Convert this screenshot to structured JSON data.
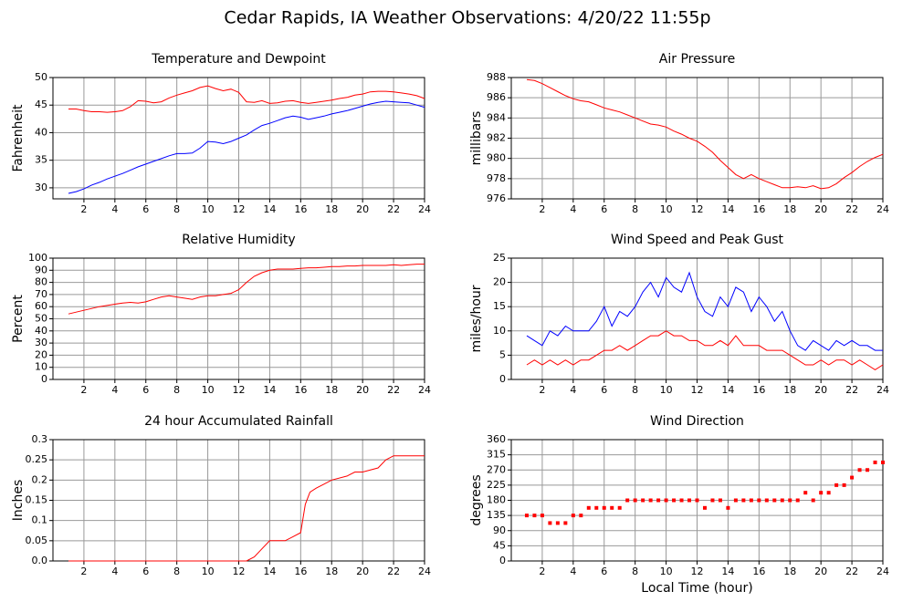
{
  "title": "Cedar Rapids, IA Weather Observations: 4/20/22 11:55p",
  "chart_data": [
    {
      "type": "line",
      "title": "Temperature and Dewpoint",
      "ylabel": "Fahrenheit",
      "x": [
        1,
        1.5,
        2,
        2.5,
        3,
        3.5,
        4,
        4.5,
        5,
        5.5,
        6,
        6.5,
        7,
        7.5,
        8,
        8.5,
        9,
        9.5,
        10,
        10.5,
        11,
        11.5,
        12,
        12.5,
        13,
        13.5,
        14,
        14.5,
        15,
        15.5,
        16,
        16.5,
        17,
        17.5,
        18,
        18.5,
        19,
        19.5,
        20,
        20.5,
        21,
        21.5,
        22,
        22.5,
        23,
        23.5,
        24
      ],
      "series": [
        {
          "color": "#ff0000",
          "values": [
            44.3,
            44.3,
            44,
            43.8,
            43.8,
            43.7,
            43.8,
            44,
            44.7,
            45.8,
            45.7,
            45.4,
            45.6,
            46.3,
            46.8,
            47.2,
            47.6,
            48.2,
            48.5,
            48,
            47.6,
            47.9,
            47.3,
            45.6,
            45.5,
            45.8,
            45.3,
            45.4,
            45.7,
            45.8,
            45.5,
            45.3,
            45.5,
            45.7,
            45.9,
            46.2,
            46.4,
            46.8,
            47,
            47.4,
            47.5,
            47.5,
            47.4,
            47.2,
            47,
            46.7,
            46.2
          ]
        },
        {
          "color": "#0000ff",
          "values": [
            29,
            29.3,
            29.8,
            30.5,
            31,
            31.6,
            32.1,
            32.6,
            33.2,
            33.8,
            34.3,
            34.8,
            35.3,
            35.8,
            36.2,
            36.2,
            36.3,
            37.2,
            38.4,
            38.3,
            38,
            38.4,
            39,
            39.6,
            40.5,
            41.3,
            41.7,
            42.2,
            42.7,
            43,
            42.8,
            42.4,
            42.7,
            43,
            43.4,
            43.7,
            44,
            44.4,
            44.8,
            45.2,
            45.5,
            45.7,
            45.6,
            45.5,
            45.4,
            45,
            44.6
          ]
        }
      ],
      "xlim": [
        0,
        24
      ],
      "xticks": [
        2,
        4,
        6,
        8,
        10,
        12,
        14,
        16,
        18,
        20,
        22,
        24
      ],
      "ylim": [
        28,
        50
      ],
      "yticks": [
        30,
        35,
        40,
        45,
        50
      ],
      "grid": true
    },
    {
      "type": "line",
      "title": "Air Pressure",
      "ylabel": "millibars",
      "x": [
        1,
        1.5,
        2,
        2.5,
        3,
        3.5,
        4,
        4.5,
        5,
        5.5,
        6,
        6.5,
        7,
        7.5,
        8,
        8.5,
        9,
        9.5,
        10,
        10.5,
        11,
        11.5,
        12,
        12.5,
        13,
        13.5,
        14,
        14.5,
        15,
        15.5,
        16,
        16.5,
        17,
        17.5,
        18,
        18.5,
        19,
        19.5,
        20,
        20.5,
        21,
        21.5,
        22,
        22.5,
        23,
        23.5,
        24
      ],
      "series": [
        {
          "color": "#ff0000",
          "values": [
            987.8,
            987.7,
            987.4,
            987,
            986.6,
            986.2,
            985.9,
            985.7,
            985.6,
            985.3,
            985,
            984.8,
            984.6,
            984.3,
            984,
            983.7,
            983.4,
            983.3,
            983.1,
            982.7,
            982.4,
            982,
            981.7,
            981.2,
            980.6,
            979.8,
            979.1,
            978.4,
            978,
            978.4,
            978,
            977.7,
            977.4,
            977.1,
            977.1,
            977.2,
            977.1,
            977.3,
            977,
            977.1,
            977.5,
            978.1,
            978.6,
            979.2,
            979.7,
            980.1,
            980.4
          ]
        }
      ],
      "xlim": [
        0,
        24
      ],
      "xticks": [
        2,
        4,
        6,
        8,
        10,
        12,
        14,
        16,
        18,
        20,
        22,
        24
      ],
      "ylim": [
        976,
        988
      ],
      "yticks": [
        976,
        978,
        980,
        982,
        984,
        986,
        988
      ],
      "grid": true
    },
    {
      "type": "line",
      "title": "Relative Humidity",
      "ylabel": "Percent",
      "x": [
        1,
        1.5,
        2,
        2.5,
        3,
        3.5,
        4,
        4.5,
        5,
        5.5,
        6,
        6.5,
        7,
        7.5,
        8,
        8.5,
        9,
        9.5,
        10,
        10.5,
        11,
        11.5,
        12,
        12.5,
        13,
        13.5,
        14,
        14.5,
        15,
        15.5,
        16,
        16.5,
        17,
        17.5,
        18,
        18.5,
        19,
        19.5,
        20,
        20.5,
        21,
        21.5,
        22,
        22.5,
        23,
        23.5,
        24
      ],
      "series": [
        {
          "color": "#ff0000",
          "values": [
            54,
            55.5,
            57,
            58.5,
            60,
            61,
            62,
            63,
            63.5,
            63,
            64,
            66,
            68,
            69,
            68,
            67,
            66,
            68,
            69,
            69,
            70,
            71,
            74,
            80,
            85,
            88,
            90,
            91,
            91,
            91,
            91.5,
            92,
            92,
            92.5,
            93,
            93,
            93.5,
            93.5,
            94,
            94,
            94,
            94,
            94.5,
            94,
            94.5,
            95,
            95
          ]
        }
      ],
      "xlim": [
        0,
        24
      ],
      "xticks": [
        2,
        4,
        6,
        8,
        10,
        12,
        14,
        16,
        18,
        20,
        22,
        24
      ],
      "ylim": [
        0,
        100
      ],
      "yticks": [
        0,
        10,
        20,
        30,
        40,
        50,
        60,
        70,
        80,
        90,
        100
      ],
      "grid": true
    },
    {
      "type": "line",
      "title": "Wind Speed and Peak Gust",
      "ylabel": "miles/hour",
      "x": [
        1,
        1.5,
        2,
        2.5,
        3,
        3.5,
        4,
        4.5,
        5,
        5.5,
        6,
        6.5,
        7,
        7.5,
        8,
        8.5,
        9,
        9.5,
        10,
        10.5,
        11,
        11.5,
        12,
        12.5,
        13,
        13.5,
        14,
        14.5,
        15,
        15.5,
        16,
        16.5,
        17,
        17.5,
        18,
        18.5,
        19,
        19.5,
        20,
        20.5,
        21,
        21.5,
        22,
        22.5,
        23,
        23.5,
        24
      ],
      "series": [
        {
          "color": "#0000ff",
          "values": [
            9,
            8,
            7,
            10,
            9,
            11,
            10,
            10,
            10,
            12,
            15,
            11,
            14,
            13,
            15,
            18,
            20,
            17,
            21,
            19,
            18,
            22,
            17,
            14,
            13,
            17,
            15,
            19,
            18,
            14,
            17,
            15,
            12,
            14,
            10,
            7,
            6,
            8,
            7,
            6,
            8,
            7,
            8,
            7,
            7,
            6,
            6
          ]
        },
        {
          "color": "#ff0000",
          "values": [
            3,
            4,
            3,
            4,
            3,
            4,
            3,
            4,
            4,
            5,
            6,
            6,
            7,
            6,
            7,
            8,
            9,
            9,
            10,
            9,
            9,
            8,
            8,
            7,
            7,
            8,
            7,
            9,
            7,
            7,
            7,
            6,
            6,
            6,
            5,
            4,
            3,
            3,
            4,
            3,
            4,
            4,
            3,
            4,
            3,
            2,
            3
          ]
        }
      ],
      "xlim": [
        0,
        24
      ],
      "xticks": [
        2,
        4,
        6,
        8,
        10,
        12,
        14,
        16,
        18,
        20,
        22,
        24
      ],
      "ylim": [
        0,
        25
      ],
      "yticks": [
        0,
        5,
        10,
        15,
        20,
        25
      ],
      "grid": true
    },
    {
      "type": "line",
      "title": "24 hour Accumulated Rainfall",
      "ylabel": "Inches",
      "x": [
        1,
        12.5,
        13,
        13.5,
        14,
        15,
        15.5,
        16,
        16.3,
        16.6,
        17,
        17.5,
        18,
        19,
        19.5,
        20,
        21,
        21.5,
        22,
        24
      ],
      "series": [
        {
          "color": "#ff0000",
          "values": [
            0,
            0,
            0.01,
            0.03,
            0.05,
            0.05,
            0.06,
            0.07,
            0.14,
            0.17,
            0.18,
            0.19,
            0.2,
            0.21,
            0.22,
            0.22,
            0.23,
            0.25,
            0.26,
            0.26
          ]
        }
      ],
      "xlim": [
        0,
        24
      ],
      "xticks": [
        2,
        4,
        6,
        8,
        10,
        12,
        14,
        16,
        18,
        20,
        22,
        24
      ],
      "ylim": [
        0,
        0.3
      ],
      "yticks": [
        {
          "value": 0,
          "label": "0.0"
        },
        0.05,
        0.1,
        0.15,
        0.2,
        0.25,
        0.3
      ],
      "grid": true
    },
    {
      "type": "scatter",
      "title": "Wind Direction",
      "ylabel": "degrees",
      "xlabel": "Local Time (hour)",
      "x": [
        1,
        1.5,
        2,
        2.5,
        3,
        3.5,
        4,
        4.5,
        5,
        5.5,
        6,
        6.5,
        7,
        7.5,
        8,
        8.5,
        9,
        9.5,
        10,
        10.5,
        11,
        11.5,
        12,
        12.5,
        13,
        13.5,
        14,
        14.5,
        15,
        15.5,
        16,
        16.5,
        17,
        17.5,
        18,
        18.5,
        19,
        19.5,
        20,
        20.5,
        21,
        21.5,
        22,
        22.5,
        23,
        23.5,
        24
      ],
      "series": [
        {
          "color": "#ff0000",
          "values": [
            135,
            135,
            135,
            112.5,
            112.5,
            112.5,
            135,
            135,
            157.5,
            157.5,
            157.5,
            157.5,
            157.5,
            180,
            180,
            180,
            180,
            180,
            180,
            180,
            180,
            180,
            180,
            157.5,
            180,
            180,
            157.5,
            180,
            180,
            180,
            180,
            180,
            180,
            180,
            180,
            180,
            202.5,
            180,
            202.5,
            202.5,
            225,
            225,
            247.5,
            270,
            270,
            292.5,
            292.5
          ]
        }
      ],
      "xlim": [
        0,
        24
      ],
      "xticks": [
        2,
        4,
        6,
        8,
        10,
        12,
        14,
        16,
        18,
        20,
        22,
        24
      ],
      "ylim": [
        0,
        360
      ],
      "yticks": [
        0,
        45,
        90,
        135,
        180,
        225,
        270,
        315,
        360
      ],
      "grid": true
    }
  ]
}
